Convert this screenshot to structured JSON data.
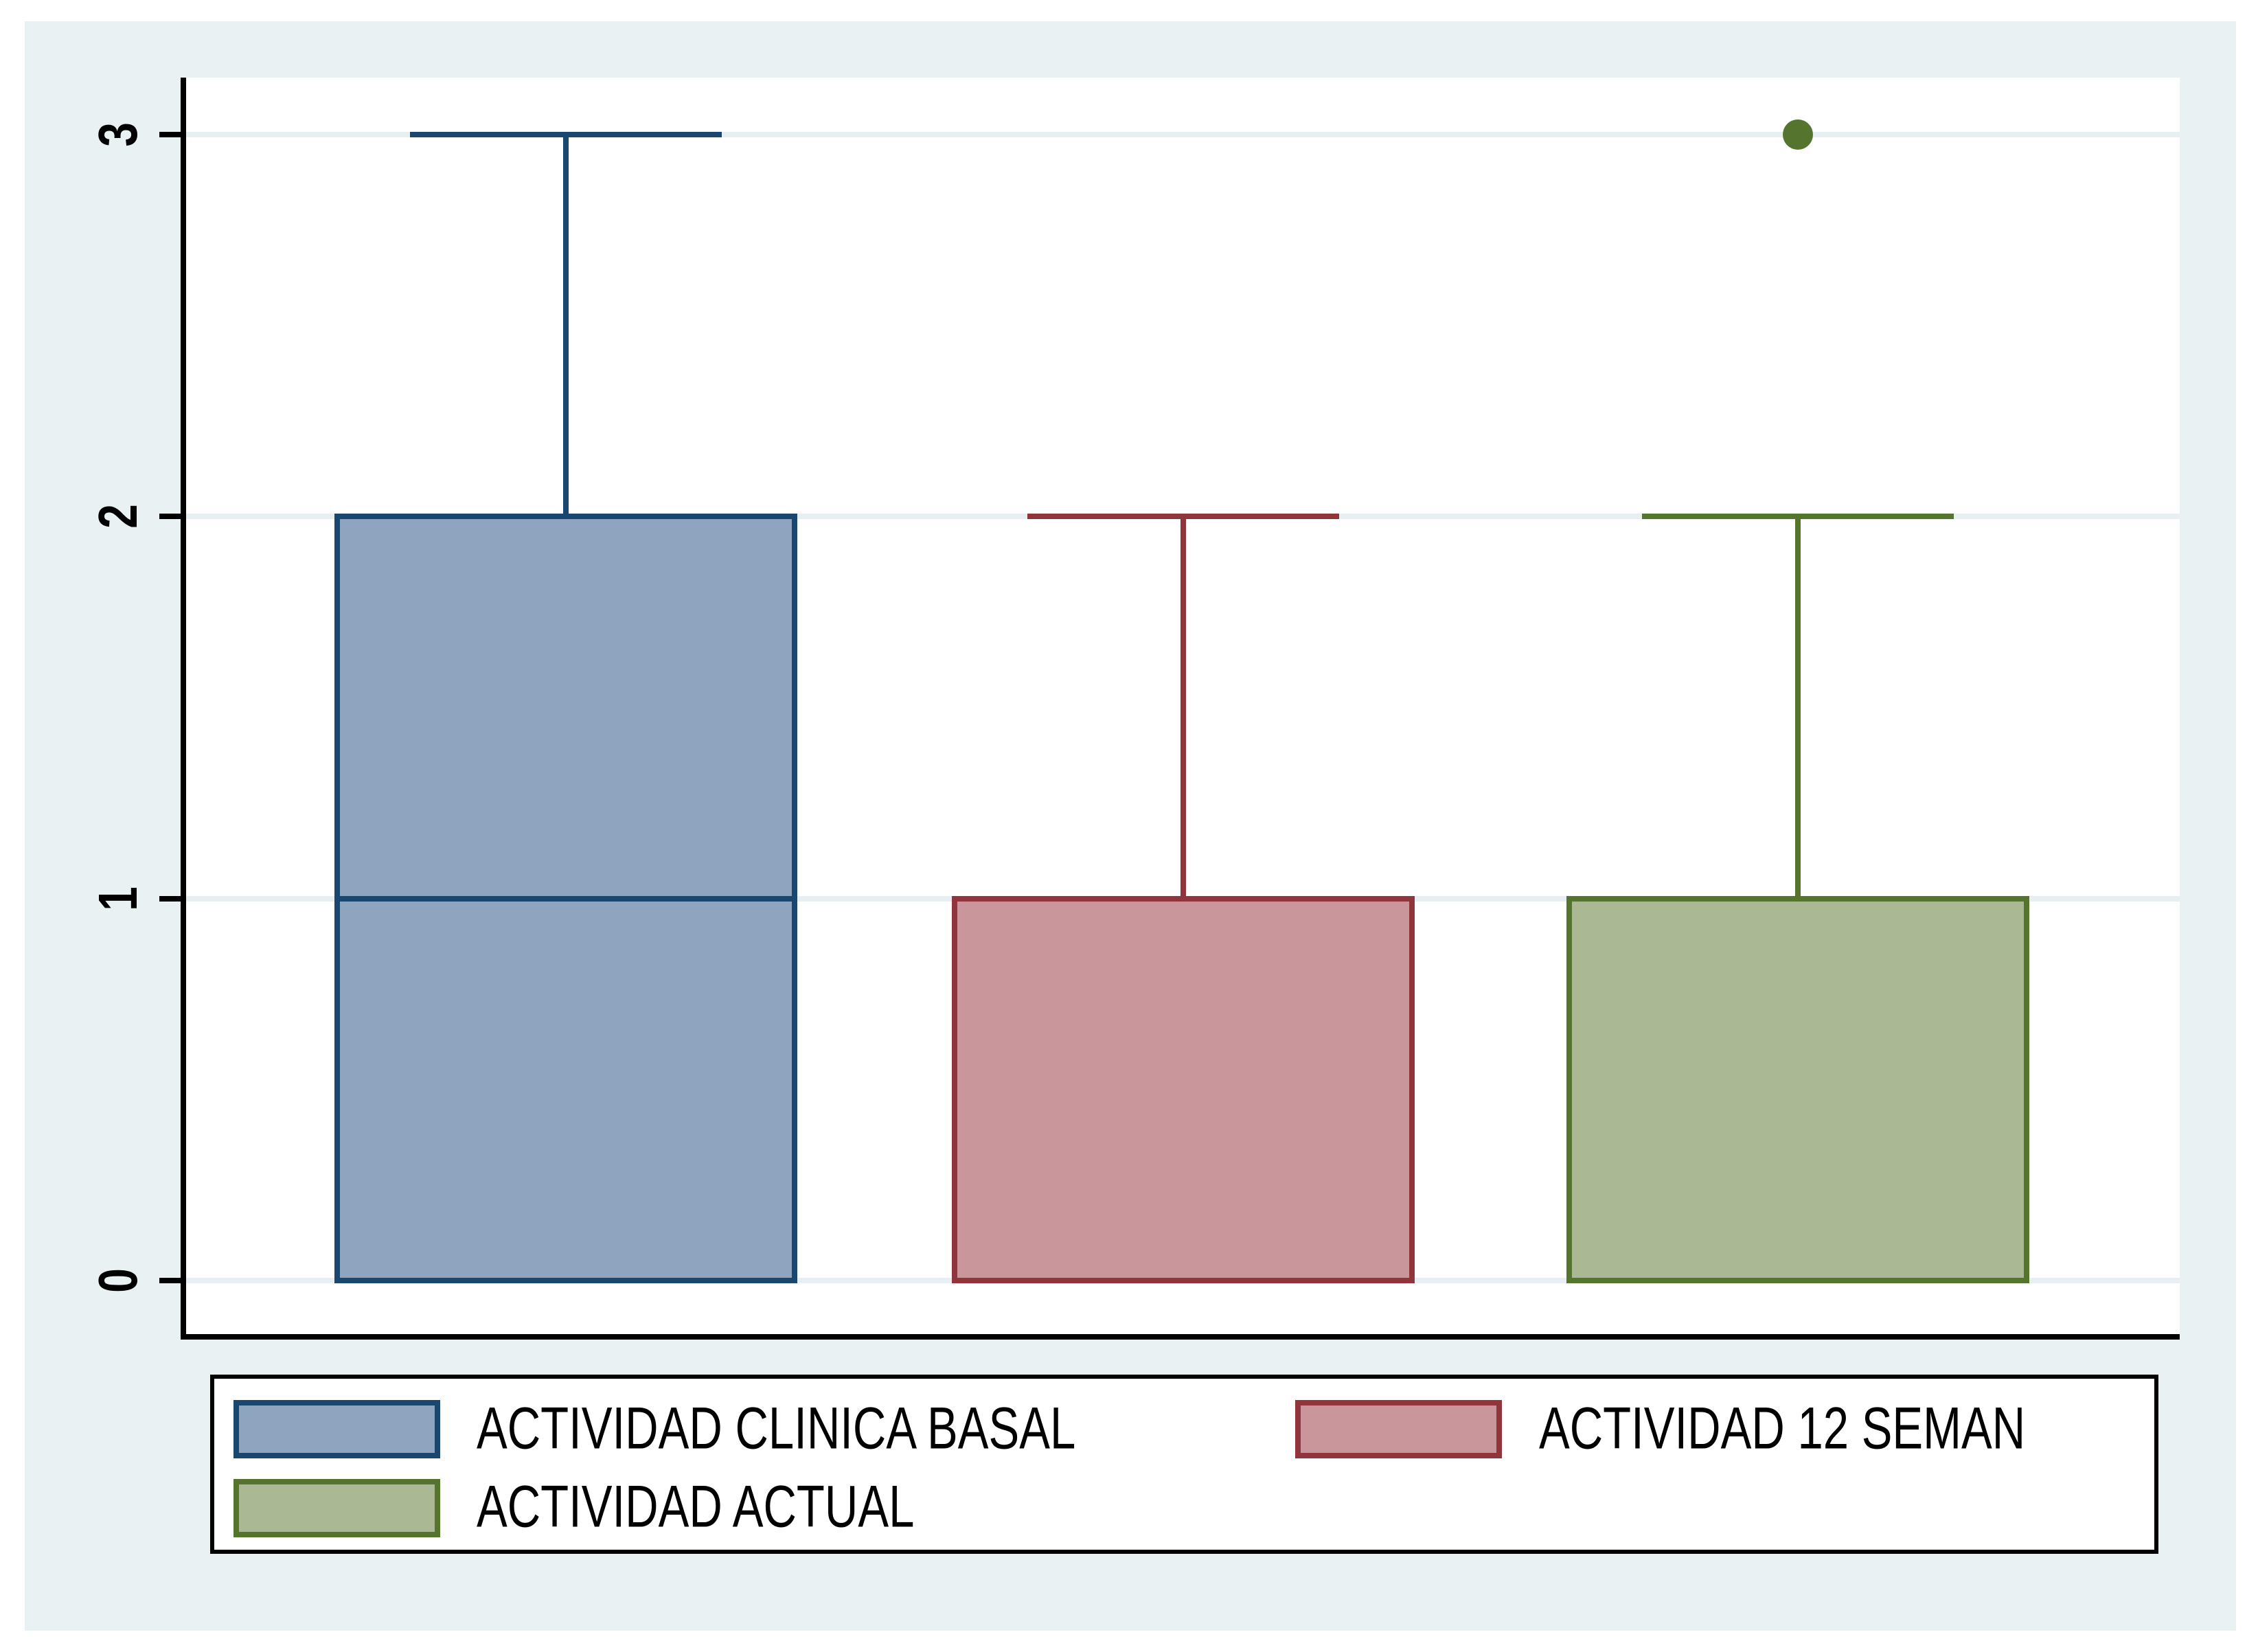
{
  "figure": {
    "background_color": "#EAF1F3",
    "plot_background": "#FFFFFF",
    "gridline_color": "#E8EFF2",
    "axis_color": "#000000",
    "text_color": "#000000"
  },
  "y_axis": {
    "tick_labels": [
      "0",
      "1",
      "2",
      "3"
    ],
    "tick_values": [
      0,
      1,
      2,
      3
    ]
  },
  "chart_data": {
    "type": "box",
    "orientation": "vertical",
    "title": "",
    "xlabel": "",
    "ylabel": "",
    "ylim": [
      -0.15,
      3.15
    ],
    "yticks": [
      0,
      1,
      2,
      3
    ],
    "grid": "horizontal",
    "legend_position": "bottom",
    "series": [
      {
        "name": "ACTIVIDAD CLINICA BASAL",
        "slug": "actividad-clinica-basal",
        "fill": "#8FA5BF",
        "stroke": "#1A476F",
        "whisker_low": 0,
        "q1": 0,
        "median": 1,
        "q3": 2,
        "whisker_high": 3,
        "outliers": []
      },
      {
        "name": "ACTIVIDAD 12 SEMAN",
        "slug": "actividad-12-seman",
        "fill": "#C8969B",
        "stroke": "#90353B",
        "whisker_low": 0,
        "q1": 0,
        "median": 1,
        "q3": 1,
        "whisker_high": 2,
        "outliers": []
      },
      {
        "name": "ACTIVIDAD ACTUAL",
        "slug": "actividad-actual",
        "fill": "#AAB894",
        "stroke": "#55752F",
        "whisker_low": 0,
        "q1": 0,
        "median": 1,
        "q3": 1,
        "whisker_high": 2,
        "outliers": [
          3
        ]
      }
    ]
  },
  "legend": {
    "entries": [
      {
        "label": "ACTIVIDAD CLINICA BASAL",
        "fill": "#8FA5BF",
        "stroke": "#1A476F",
        "col": 0,
        "row": 0
      },
      {
        "label": "ACTIVIDAD 12 SEMAN",
        "fill": "#C8969B",
        "stroke": "#90353B",
        "col": 1,
        "row": 0
      },
      {
        "label": "ACTIVIDAD ACTUAL",
        "fill": "#AAB894",
        "stroke": "#55752F",
        "col": 0,
        "row": 1
      }
    ]
  }
}
